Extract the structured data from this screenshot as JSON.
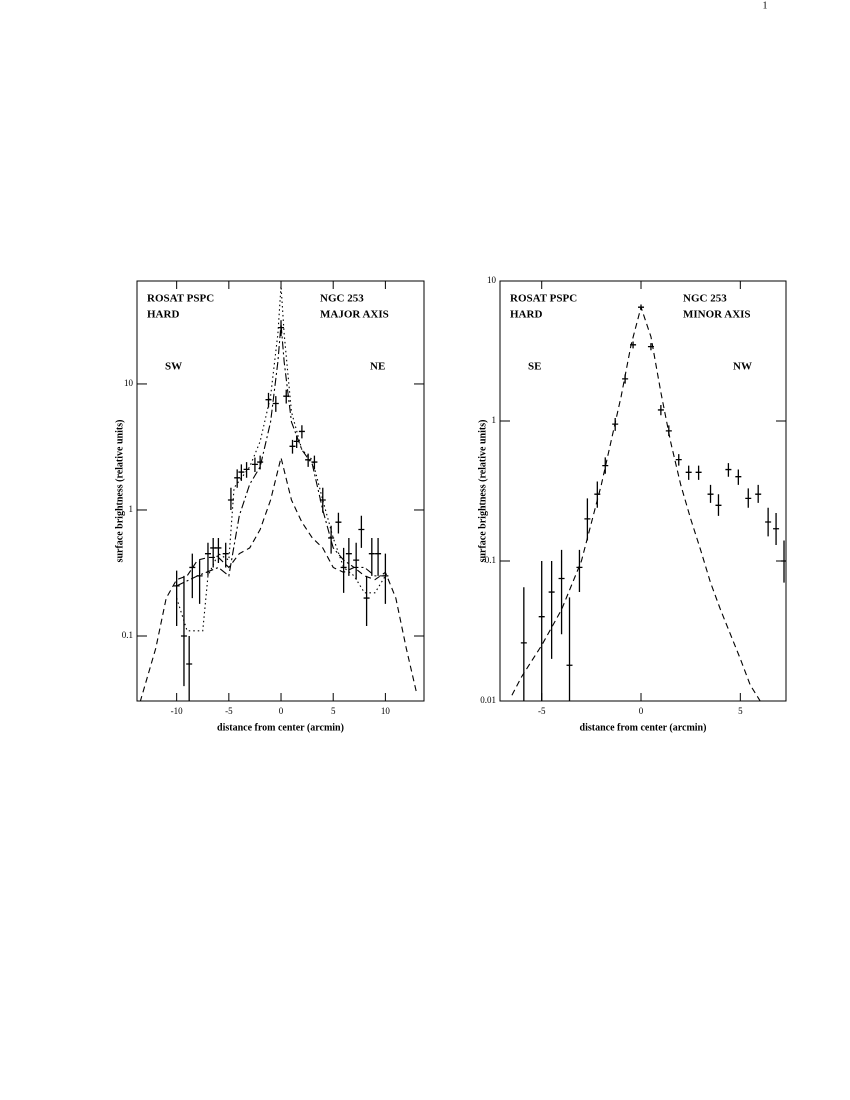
{
  "page_number": "1",
  "chart_data": [
    {
      "type": "scatter",
      "log_y": true,
      "xlabel": "distance from center (arcmin)",
      "ylabel": "surface brightness (relative units)",
      "annotations": [
        "ROSAT PSPC",
        "HARD",
        "NGC 253",
        "MAJOR AXIS",
        "SW",
        "NE"
      ],
      "xlim": [
        -13.8,
        13.7
      ],
      "ylim": [
        0.0305,
        65.6
      ],
      "xticks": [
        -10,
        -5,
        0,
        5,
        10
      ],
      "yticks": [
        0.1,
        1,
        10
      ],
      "series": [
        {
          "style": "points",
          "color": "#000000",
          "x": [
            -10.0,
            -9.3,
            -8.8,
            -8.5,
            -7.8,
            -7.0,
            -6.5,
            -6.0,
            -5.3,
            -4.8,
            -4.2,
            -3.8,
            -3.3,
            -2.5,
            -2.0,
            -1.2,
            -0.5,
            0.0,
            0.5,
            1.1,
            1.5,
            2.0,
            2.6,
            3.2,
            4.0,
            4.8,
            5.5,
            6.0,
            6.5,
            7.2,
            7.7,
            8.2,
            8.7,
            9.3,
            10.0
          ],
          "values": [
            0.25,
            0.1,
            0.06,
            0.35,
            0.3,
            0.45,
            0.5,
            0.5,
            0.45,
            1.2,
            1.8,
            2.0,
            2.1,
            2.3,
            2.4,
            7.5,
            7,
            28,
            8,
            3.2,
            3.5,
            4.2,
            2.5,
            2.4,
            1.2,
            0.6,
            0.8,
            0.35,
            0.45,
            0.4,
            0.7,
            0.2,
            0.45,
            0.45,
            0.3
          ],
          "lower": [
            0.12,
            0.04,
            0.03,
            0.2,
            0.18,
            0.3,
            0.35,
            0.38,
            0.35,
            1.0,
            1.5,
            1.7,
            1.8,
            2.0,
            2.1,
            6.5,
            6,
            24,
            7,
            2.8,
            3.1,
            3.7,
            2.2,
            2.1,
            0.95,
            0.45,
            0.65,
            0.22,
            0.3,
            0.28,
            0.5,
            0.12,
            0.3,
            0.3,
            0.18
          ],
          "upper": [
            0.33,
            0.3,
            0.1,
            0.45,
            0.4,
            0.55,
            0.6,
            0.6,
            0.55,
            1.5,
            2.1,
            2.3,
            2.4,
            2.6,
            2.7,
            8.5,
            8,
            32,
            9,
            3.6,
            3.9,
            4.7,
            2.8,
            2.7,
            1.5,
            0.75,
            0.95,
            0.5,
            0.6,
            0.55,
            0.9,
            0.3,
            0.6,
            0.6,
            0.45
          ]
        },
        {
          "style": "dashed",
          "color": "#000000",
          "x": [
            -13.5,
            -12,
            -11,
            -10,
            -9,
            -8,
            -7,
            -6,
            -5,
            -4,
            -3,
            -2,
            -1,
            0,
            1,
            2,
            3,
            4,
            5,
            6,
            7,
            8,
            9,
            10,
            11,
            12,
            13
          ],
          "values": [
            0.03,
            0.08,
            0.2,
            0.28,
            0.3,
            0.4,
            0.42,
            0.42,
            0.35,
            0.45,
            0.5,
            0.7,
            1.2,
            2.6,
            1.2,
            0.8,
            0.6,
            0.5,
            0.35,
            0.32,
            0.35,
            0.3,
            0.28,
            0.32,
            0.2,
            0.08,
            0.035
          ]
        },
        {
          "style": "dotted",
          "color": "#000000",
          "x": [
            -10,
            -9,
            -7.5,
            -7,
            -6,
            -5,
            -4.5,
            -3,
            -2,
            -1,
            -0.3,
            0,
            0.3,
            1,
            2,
            3,
            4,
            5,
            6,
            7,
            8,
            9,
            10
          ],
          "values": [
            0.2,
            0.11,
            0.11,
            0.3,
            0.45,
            0.4,
            1.5,
            2.2,
            3.5,
            8,
            25,
            60,
            25,
            6,
            3,
            2.5,
            1.2,
            0.6,
            0.35,
            0.3,
            0.22,
            0.22,
            0.3
          ]
        },
        {
          "style": "dashdot",
          "color": "#000000",
          "x": [
            -10,
            -8,
            -6,
            -5,
            -4,
            -3,
            -2,
            -1,
            -0.3,
            0,
            0.3,
            1,
            2,
            3,
            4,
            5,
            6,
            7,
            8,
            9,
            10
          ],
          "values": [
            0.25,
            0.3,
            0.35,
            0.3,
            0.9,
            1.6,
            2.2,
            5,
            15,
            30,
            15,
            5,
            3,
            2.3,
            1.0,
            0.5,
            0.4,
            0.35,
            0.35,
            0.3,
            0.3
          ]
        }
      ]
    },
    {
      "type": "scatter",
      "log_y": true,
      "xlabel": "distance from center (arcmin)",
      "ylabel": "surface brightness (relative units)",
      "annotations": [
        "ROSAT PSPC",
        "HARD",
        "NGC 253",
        "MINOR AXIS",
        "SE",
        "NW"
      ],
      "xlim": [
        -7.1,
        7.3
      ],
      "ylim": [
        0.01,
        10
      ],
      "xticks": [
        -5,
        0,
        5
      ],
      "yticks": [
        0.01,
        0.1,
        1,
        10
      ],
      "series": [
        {
          "style": "points",
          "color": "#000000",
          "x": [
            -5.9,
            -5.0,
            -4.5,
            -4.0,
            -3.6,
            -3.1,
            -2.7,
            -2.2,
            -1.8,
            -1.3,
            -0.8,
            -0.4,
            0.0,
            0.5,
            1.0,
            1.4,
            1.9,
            2.4,
            2.9,
            3.5,
            3.9,
            4.4,
            4.9,
            5.4,
            5.9,
            6.4,
            6.8,
            7.2
          ],
          "values": [
            0.026,
            0.04,
            0.06,
            0.075,
            0.018,
            0.09,
            0.2,
            0.3,
            0.48,
            0.95,
            2.0,
            3.5,
            6.5,
            3.4,
            1.2,
            0.85,
            0.53,
            0.43,
            0.43,
            0.3,
            0.25,
            0.45,
            0.4,
            0.28,
            0.3,
            0.19,
            0.17,
            0.1
          ],
          "lower": [
            0.01,
            0.01,
            0.02,
            0.03,
            0.01,
            0.06,
            0.14,
            0.24,
            0.42,
            0.85,
            1.85,
            3.3,
            6.2,
            3.2,
            1.1,
            0.78,
            0.48,
            0.38,
            0.38,
            0.26,
            0.21,
            0.4,
            0.35,
            0.24,
            0.26,
            0.15,
            0.13,
            0.07
          ],
          "upper": [
            0.065,
            0.1,
            0.1,
            0.12,
            0.055,
            0.12,
            0.28,
            0.37,
            0.55,
            1.05,
            2.15,
            3.7,
            6.8,
            3.6,
            1.3,
            0.93,
            0.58,
            0.48,
            0.48,
            0.35,
            0.3,
            0.5,
            0.45,
            0.33,
            0.35,
            0.24,
            0.22,
            0.14
          ]
        },
        {
          "style": "dashed",
          "color": "#000000",
          "x": [
            -6.5,
            -6,
            -5,
            -4,
            -3,
            -2,
            -1,
            -0.5,
            0,
            0.5,
            1,
            1.5,
            2,
            2.5,
            3,
            3.5,
            4,
            4.5,
            5,
            5.5,
            6
          ],
          "values": [
            0.011,
            0.015,
            0.025,
            0.045,
            0.1,
            0.35,
            1.5,
            3.5,
            6.5,
            4,
            1.6,
            0.7,
            0.35,
            0.2,
            0.12,
            0.07,
            0.045,
            0.03,
            0.02,
            0.013,
            0.01
          ]
        }
      ]
    }
  ]
}
